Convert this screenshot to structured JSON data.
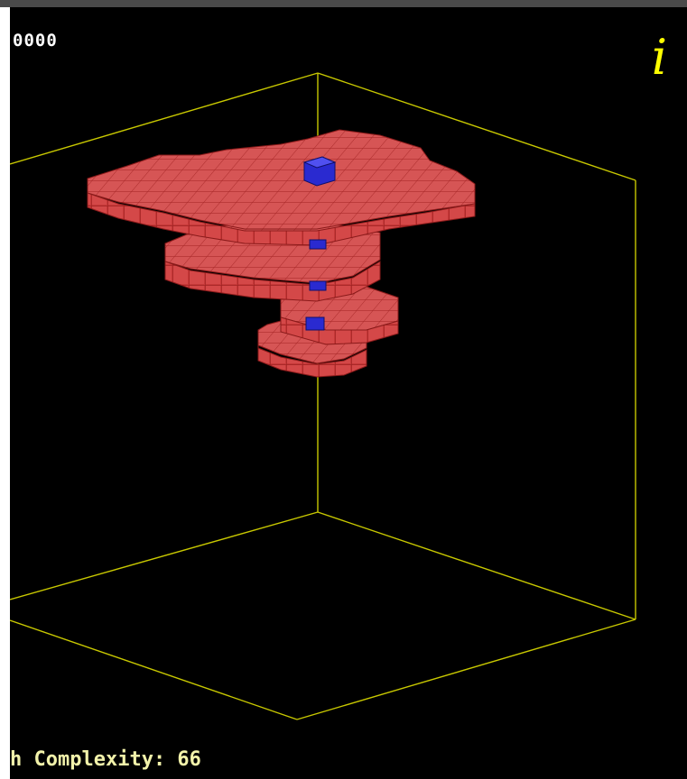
{
  "hud": {
    "score": "0000",
    "info_glyph": "i",
    "complexity_text": "h Complexity: 66"
  },
  "colors": {
    "background": "#000000",
    "box_edges": "#ffff00",
    "piece_red": "#d03030",
    "piece_blue": "#2020c8",
    "hud_text": "#ffffff"
  },
  "icons": {
    "info": "info-icon"
  }
}
